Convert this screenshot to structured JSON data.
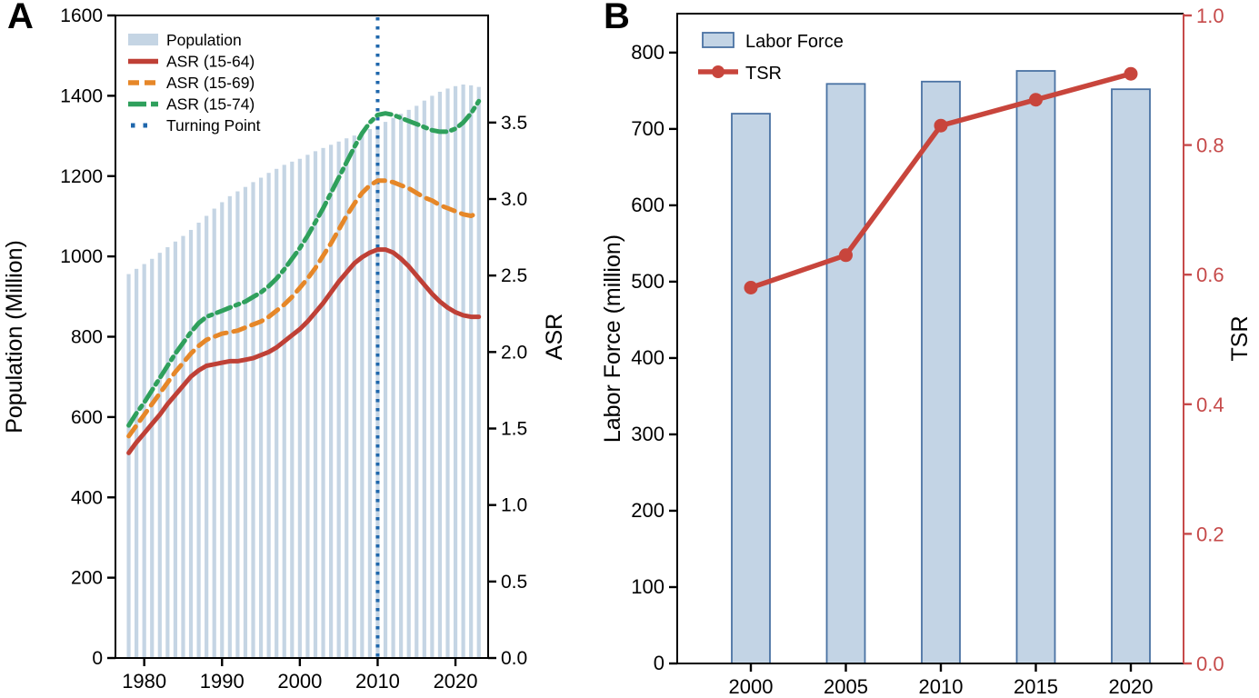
{
  "panels": [
    {
      "label": "A"
    },
    {
      "label": "B"
    }
  ],
  "chart_data": [
    {
      "type": "bar+line",
      "panel": "A",
      "x": [
        1978,
        1979,
        1980,
        1981,
        1982,
        1983,
        1984,
        1985,
        1986,
        1987,
        1988,
        1989,
        1990,
        1991,
        1992,
        1993,
        1994,
        1995,
        1996,
        1997,
        1998,
        1999,
        2000,
        2001,
        2002,
        2003,
        2004,
        2005,
        2006,
        2007,
        2008,
        2009,
        2010,
        2011,
        2012,
        2013,
        2014,
        2015,
        2016,
        2017,
        2018,
        2019,
        2020,
        2021,
        2022,
        2023
      ],
      "bar_series": {
        "name": "Population",
        "color": "#c5d5e4",
        "values": [
          956,
          969,
          981,
          994,
          1009,
          1023,
          1037,
          1051,
          1066,
          1084,
          1101,
          1119,
          1135,
          1150,
          1162,
          1173,
          1185,
          1196,
          1208,
          1218,
          1228,
          1236,
          1243,
          1253,
          1262,
          1270,
          1278,
          1286,
          1294,
          1301,
          1309,
          1317,
          1326,
          1335,
          1345,
          1355,
          1365,
          1375,
          1388,
          1400,
          1410,
          1418,
          1424,
          1428,
          1426,
          1422
        ]
      },
      "line_series": [
        {
          "name": "ASR (15-64)",
          "style": "solid",
          "color": "#bf4036",
          "values": [
            1.34,
            1.41,
            1.47,
            1.53,
            1.59,
            1.66,
            1.72,
            1.78,
            1.84,
            1.88,
            1.91,
            1.92,
            1.93,
            1.94,
            1.94,
            1.95,
            1.96,
            1.98,
            2.0,
            2.03,
            2.07,
            2.11,
            2.15,
            2.2,
            2.26,
            2.32,
            2.39,
            2.46,
            2.52,
            2.58,
            2.62,
            2.65,
            2.67,
            2.67,
            2.65,
            2.61,
            2.56,
            2.5,
            2.44,
            2.38,
            2.33,
            2.29,
            2.26,
            2.24,
            2.23,
            2.23
          ]
        },
        {
          "name": "ASR (15-69)",
          "style": "dashed",
          "color": "#e68728",
          "values": [
            1.45,
            1.52,
            1.59,
            1.66,
            1.73,
            1.8,
            1.87,
            1.93,
            1.99,
            2.04,
            2.08,
            2.1,
            2.12,
            2.13,
            2.14,
            2.16,
            2.18,
            2.2,
            2.23,
            2.27,
            2.31,
            2.36,
            2.42,
            2.48,
            2.55,
            2.63,
            2.71,
            2.8,
            2.89,
            2.97,
            3.04,
            3.09,
            3.12,
            3.12,
            3.11,
            3.09,
            3.07,
            3.04,
            3.01,
            2.99,
            2.96,
            2.94,
            2.92,
            2.9,
            2.89,
            2.91
          ]
        },
        {
          "name": "ASR (15-74)",
          "style": "dashdot",
          "color": "#2fa05c",
          "values": [
            1.52,
            1.6,
            1.67,
            1.75,
            1.83,
            1.91,
            1.99,
            2.06,
            2.13,
            2.19,
            2.23,
            2.25,
            2.27,
            2.29,
            2.31,
            2.33,
            2.36,
            2.39,
            2.43,
            2.48,
            2.54,
            2.61,
            2.68,
            2.76,
            2.85,
            2.94,
            3.04,
            3.14,
            3.24,
            3.34,
            3.43,
            3.5,
            3.55,
            3.56,
            3.55,
            3.53,
            3.51,
            3.49,
            3.47,
            3.45,
            3.44,
            3.44,
            3.46,
            3.5,
            3.56,
            3.64
          ]
        }
      ],
      "vline": {
        "name": "Turning Point",
        "x": 2010,
        "style": "dotted",
        "color": "#1f67ac"
      },
      "ylabel_left": "Population (Million)",
      "ylabel_right": "ASR",
      "ylim_left": [
        0,
        1600
      ],
      "yticks_left": [
        0,
        200,
        400,
        600,
        800,
        1000,
        1200,
        1400,
        1600
      ],
      "ylim_right": [
        0,
        4.2
      ],
      "yticks_right": [
        0.0,
        0.5,
        1.0,
        1.5,
        2.0,
        2.5,
        3.0,
        3.5
      ],
      "xlim": [
        1976.3,
        2024.2
      ],
      "xticks": [
        1980,
        1990,
        2000,
        2010,
        2020
      ],
      "legend": [
        "Population",
        "ASR (15-64)",
        "ASR (15-69)",
        "ASR (15-74)",
        "Turning Point"
      ],
      "legend_position": "upper-left",
      "grid": false
    },
    {
      "type": "bar+line",
      "panel": "B",
      "categories": [
        2000,
        2005,
        2010,
        2015,
        2020
      ],
      "bar_series": {
        "name": "Labor Force",
        "color": "#c3d4e5",
        "border": "#4a72a3",
        "values": [
          720,
          759,
          762,
          776,
          752
        ]
      },
      "line_series": [
        {
          "name": "TSR",
          "style": "solid",
          "marker": "circle",
          "color": "#c8453c",
          "values": [
            0.58,
            0.63,
            0.83,
            0.87,
            0.91
          ]
        }
      ],
      "ylabel_left": "Labor Force (million)",
      "ylabel_right": "TSR",
      "ylim_left": [
        0,
        851
      ],
      "yticks_left": [
        0,
        100,
        200,
        300,
        400,
        500,
        600,
        700,
        800
      ],
      "ylim_right": [
        0,
        1.0
      ],
      "yticks_right": [
        0.0,
        0.2,
        0.4,
        0.6,
        0.8,
        1.0
      ],
      "right_axis_color": "#c64a4a",
      "legend": [
        "Labor Force",
        "TSR"
      ],
      "legend_position": "upper-left",
      "grid": false
    }
  ]
}
